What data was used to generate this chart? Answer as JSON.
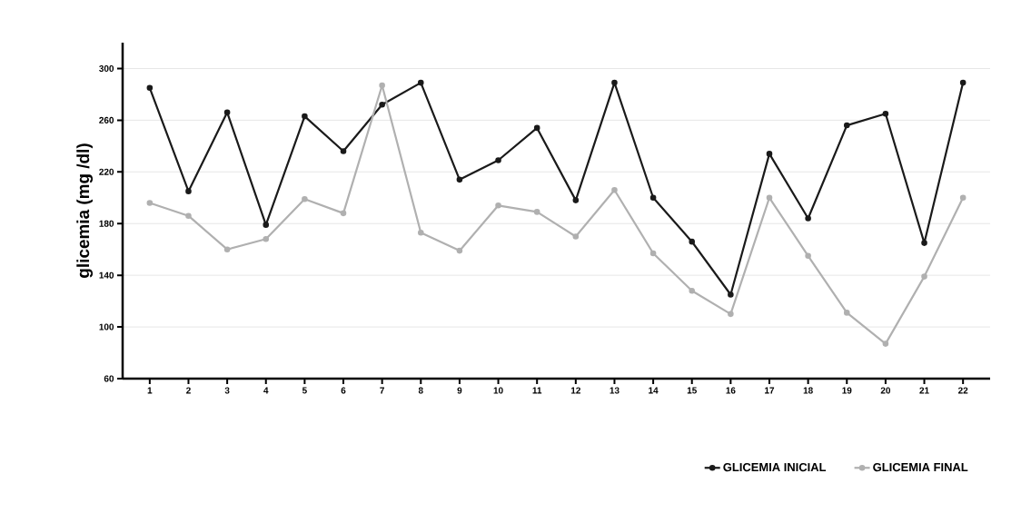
{
  "chart_data": {
    "type": "line",
    "ylabel": "glicemia (mg /dl)",
    "categories": [
      "1",
      "2",
      "3",
      "4",
      "5",
      "6",
      "7",
      "8",
      "9",
      "10",
      "11",
      "12",
      "13",
      "14",
      "15",
      "16",
      "17",
      "18",
      "19",
      "20",
      "21",
      "22"
    ],
    "series": [
      {
        "name": "GLICEMIA INICIAL",
        "color": "#1a1a1a",
        "values": [
          285,
          205,
          266,
          179,
          263,
          236,
          272,
          289,
          214,
          229,
          254,
          198,
          289,
          200,
          166,
          125,
          234,
          184,
          256,
          265,
          165,
          289
        ]
      },
      {
        "name": "GLICEMIA FINAL",
        "color": "#b0b0b0",
        "values": [
          196,
          186,
          160,
          168,
          199,
          188,
          287,
          173,
          159,
          194,
          189,
          170,
          206,
          157,
          128,
          110,
          200,
          155,
          111,
          87,
          139,
          200
        ]
      }
    ],
    "ylim": [
      60,
      320
    ],
    "yticks": [
      60,
      100,
      140,
      180,
      220,
      260,
      300
    ],
    "grid": "y",
    "legend": "bottom right",
    "marker": "circle",
    "line_style": "solid"
  }
}
